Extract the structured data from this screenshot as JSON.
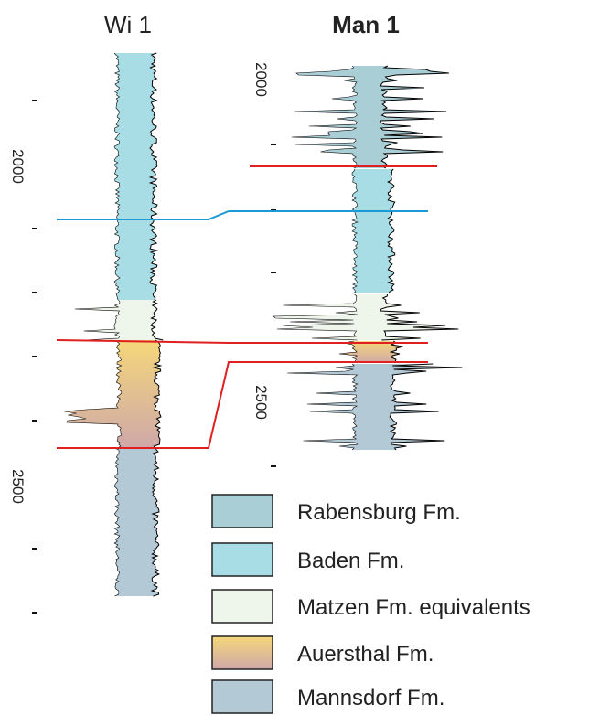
{
  "wells": [
    {
      "name": "Wi 1",
      "depth_labels": [
        "2000",
        "2500"
      ]
    },
    {
      "name": "Man 1",
      "depth_labels": [
        "2000",
        "2500"
      ]
    }
  ],
  "legend": [
    {
      "label": "Rabensburg Fm.",
      "color": "#a9ced6"
    },
    {
      "label": "Baden Fm.",
      "color": "#a8dde6"
    },
    {
      "label": "Matzen Fm. equivalents",
      "color": "#eef5ea"
    },
    {
      "label": "Auersthal Fm.",
      "color": "#f5d77a"
    },
    {
      "label": "Mannsdorf Fm.",
      "color": "#b3c9d6"
    }
  ]
}
